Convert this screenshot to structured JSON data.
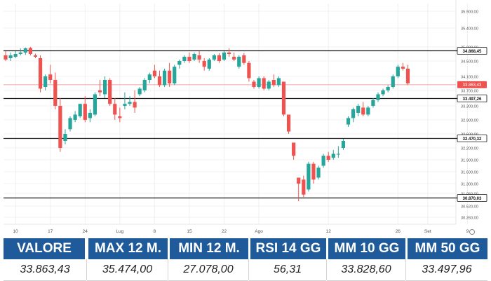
{
  "chart_data": {
    "type": "candlestick",
    "y_ticks": [
      "35.900,00",
      "35.400,00",
      "35.000,00",
      "34.500,00",
      "34.100,00",
      "33.700,00",
      "33.300,00",
      "32.900,00",
      "32.600,00",
      "32.200,00",
      "31.900,00",
      "31.600,00",
      "31.300,00",
      "31.050,00",
      "30.520,00",
      "30.260,00"
    ],
    "x_ticks": [
      "10",
      "17",
      "24",
      "Lug",
      "8",
      "15",
      "22",
      "Ago",
      "12",
      "26",
      "Set",
      "9"
    ],
    "x_tick_days": [
      2,
      9,
      16,
      23,
      30,
      37,
      44,
      51,
      65,
      79,
      85,
      93
    ],
    "y_label_values": [
      35900,
      35400,
      35000,
      34500,
      34100,
      33700,
      33300,
      32900,
      32600,
      32200,
      31900,
      31600,
      31300,
      31050,
      30520,
      30260
    ],
    "levels": [
      {
        "label": "34.868,45",
        "value": 34868.45
      },
      {
        "label": "33.497,26",
        "value": 33497.26
      },
      {
        "label": "32.470,32",
        "value": 32470.32
      },
      {
        "label": "30.870,03",
        "value": 30870.03
      }
    ],
    "current": {
      "label": "33.863,43",
      "value": 33863.43
    },
    "candles": [
      {
        "d": 0,
        "o": 34700,
        "h": 34850,
        "l": 34500,
        "c": 34550
      },
      {
        "d": 1,
        "o": 34600,
        "h": 34800,
        "l": 34500,
        "c": 34700
      },
      {
        "d": 2,
        "o": 34650,
        "h": 34850,
        "l": 34600,
        "c": 34750
      },
      {
        "d": 3,
        "o": 34750,
        "h": 34950,
        "l": 34700,
        "c": 34800
      },
      {
        "d": 4,
        "o": 34800,
        "h": 34980,
        "l": 34720,
        "c": 34950
      },
      {
        "d": 5,
        "o": 34960,
        "h": 35000,
        "l": 34700,
        "c": 34750
      },
      {
        "d": 6,
        "o": 34700,
        "h": 34760,
        "l": 34600,
        "c": 34650
      },
      {
        "d": 7,
        "o": 34600,
        "h": 34700,
        "l": 33650,
        "c": 33750
      },
      {
        "d": 8,
        "o": 33800,
        "h": 34150,
        "l": 33700,
        "c": 34100
      },
      {
        "d": 9,
        "o": 34150,
        "h": 34400,
        "l": 33900,
        "c": 34000
      },
      {
        "d": 10,
        "o": 34000,
        "h": 34200,
        "l": 33200,
        "c": 33300
      },
      {
        "d": 11,
        "o": 33300,
        "h": 33500,
        "l": 32100,
        "c": 32200
      },
      {
        "d": 12,
        "o": 32400,
        "h": 32700,
        "l": 32300,
        "c": 32600
      },
      {
        "d": 13,
        "o": 32700,
        "h": 33000,
        "l": 32650,
        "c": 32950
      },
      {
        "d": 14,
        "o": 32900,
        "h": 33150,
        "l": 32850,
        "c": 33050
      },
      {
        "d": 15,
        "o": 33000,
        "h": 33350,
        "l": 32950,
        "c": 33350
      },
      {
        "d": 16,
        "o": 33350,
        "h": 33550,
        "l": 32850,
        "c": 32900
      },
      {
        "d": 17,
        "o": 32950,
        "h": 33200,
        "l": 32850,
        "c": 33100
      },
      {
        "d": 18,
        "o": 33050,
        "h": 33650,
        "l": 33000,
        "c": 33600
      },
      {
        "d": 19,
        "o": 33700,
        "h": 34000,
        "l": 33550,
        "c": 33650
      },
      {
        "d": 20,
        "o": 33600,
        "h": 34100,
        "l": 33500,
        "c": 34000
      },
      {
        "d": 21,
        "o": 34000,
        "h": 34050,
        "l": 33300,
        "c": 33350
      },
      {
        "d": 22,
        "o": 33350,
        "h": 33500,
        "l": 32900,
        "c": 33050
      },
      {
        "d": 23,
        "o": 33000,
        "h": 33250,
        "l": 32850,
        "c": 32950
      },
      {
        "d": 24,
        "o": 33300,
        "h": 33650,
        "l": 33200,
        "c": 33350
      },
      {
        "d": 25,
        "o": 33350,
        "h": 33550,
        "l": 33300,
        "c": 33400
      },
      {
        "d": 26,
        "o": 33400,
        "h": 33700,
        "l": 33100,
        "c": 33250
      },
      {
        "d": 27,
        "o": 33600,
        "h": 33800,
        "l": 33550,
        "c": 33750
      },
      {
        "d": 28,
        "o": 33700,
        "h": 34050,
        "l": 33650,
        "c": 34000
      },
      {
        "d": 29,
        "o": 34000,
        "h": 34200,
        "l": 33900,
        "c": 34150
      },
      {
        "d": 30,
        "o": 34250,
        "h": 34400,
        "l": 34050,
        "c": 34100
      },
      {
        "d": 31,
        "o": 34100,
        "h": 34250,
        "l": 33800,
        "c": 33850
      },
      {
        "d": 32,
        "o": 33850,
        "h": 34300,
        "l": 33800,
        "c": 34250
      },
      {
        "d": 33,
        "o": 34250,
        "h": 34450,
        "l": 33800,
        "c": 33900
      },
      {
        "d": 34,
        "o": 33900,
        "h": 34400,
        "l": 33850,
        "c": 34350
      },
      {
        "d": 35,
        "o": 34400,
        "h": 34550,
        "l": 34300,
        "c": 34500
      },
      {
        "d": 36,
        "o": 34500,
        "h": 34700,
        "l": 34450,
        "c": 34650
      },
      {
        "d": 37,
        "o": 34650,
        "h": 34800,
        "l": 34450,
        "c": 34500
      },
      {
        "d": 38,
        "o": 34550,
        "h": 34800,
        "l": 34500,
        "c": 34750
      },
      {
        "d": 39,
        "o": 34700,
        "h": 34850,
        "l": 34450,
        "c": 34550
      },
      {
        "d": 40,
        "o": 34500,
        "h": 34600,
        "l": 34250,
        "c": 34350
      },
      {
        "d": 41,
        "o": 34300,
        "h": 34600,
        "l": 34250,
        "c": 34550
      },
      {
        "d": 42,
        "o": 34550,
        "h": 34750,
        "l": 34500,
        "c": 34700
      },
      {
        "d": 43,
        "o": 34700,
        "h": 34780,
        "l": 34450,
        "c": 34500
      },
      {
        "d": 44,
        "o": 34550,
        "h": 34850,
        "l": 34500,
        "c": 34800
      },
      {
        "d": 45,
        "o": 34800,
        "h": 34950,
        "l": 34650,
        "c": 34750
      },
      {
        "d": 46,
        "o": 34650,
        "h": 34800,
        "l": 34500,
        "c": 34550
      },
      {
        "d": 47,
        "o": 34350,
        "h": 34700,
        "l": 34300,
        "c": 34650
      },
      {
        "d": 48,
        "o": 34700,
        "h": 34780,
        "l": 34400,
        "c": 34450
      },
      {
        "d": 49,
        "o": 34450,
        "h": 34500,
        "l": 33950,
        "c": 34050
      },
      {
        "d": 50,
        "o": 33950,
        "h": 34000,
        "l": 33750,
        "c": 33800
      },
      {
        "d": 51,
        "o": 33800,
        "h": 34100,
        "l": 33750,
        "c": 34050
      },
      {
        "d": 52,
        "o": 34050,
        "h": 34100,
        "l": 33700,
        "c": 33750
      },
      {
        "d": 53,
        "o": 33750,
        "h": 34000,
        "l": 33700,
        "c": 33950
      },
      {
        "d": 54,
        "o": 34000,
        "h": 34150,
        "l": 33800,
        "c": 33850
      },
      {
        "d": 55,
        "o": 33850,
        "h": 34100,
        "l": 33800,
        "c": 34050
      },
      {
        "d": 56,
        "o": 33950,
        "h": 33950,
        "l": 33000,
        "c": 33050
      },
      {
        "d": 57,
        "o": 33050,
        "h": 33050,
        "l": 32600,
        "c": 32650
      },
      {
        "d": 58,
        "o": 32350,
        "h": 32350,
        "l": 31900,
        "c": 32000
      },
      {
        "d": 59,
        "o": 31450,
        "h": 31450,
        "l": 30720,
        "c": 31300
      },
      {
        "d": 60,
        "o": 31400,
        "h": 31500,
        "l": 30900,
        "c": 31000
      },
      {
        "d": 61,
        "o": 31150,
        "h": 31850,
        "l": 31100,
        "c": 31800
      },
      {
        "d": 62,
        "o": 31800,
        "h": 31850,
        "l": 31300,
        "c": 31400
      },
      {
        "d": 63,
        "o": 31450,
        "h": 31750,
        "l": 31400,
        "c": 31700
      },
      {
        "d": 64,
        "o": 31750,
        "h": 32050,
        "l": 31700,
        "c": 32000
      },
      {
        "d": 65,
        "o": 32000,
        "h": 32100,
        "l": 31850,
        "c": 31900
      },
      {
        "d": 66,
        "o": 31950,
        "h": 32150,
        "l": 31900,
        "c": 32050
      },
      {
        "d": 67,
        "o": 32050,
        "h": 32250,
        "l": 31950,
        "c": 32050
      },
      {
        "d": 68,
        "o": 32200,
        "h": 32450,
        "l": 32150,
        "c": 32400
      },
      {
        "d": 69,
        "o": 32800,
        "h": 33000,
        "l": 32750,
        "c": 32950
      },
      {
        "d": 70,
        "o": 32950,
        "h": 33250,
        "l": 32850,
        "c": 33200
      },
      {
        "d": 71,
        "o": 33100,
        "h": 33350,
        "l": 33000,
        "c": 33300
      },
      {
        "d": 72,
        "o": 33250,
        "h": 33400,
        "l": 33000,
        "c": 33050
      },
      {
        "d": 73,
        "o": 33050,
        "h": 33300,
        "l": 33000,
        "c": 33250
      },
      {
        "d": 74,
        "o": 33300,
        "h": 33500,
        "l": 33250,
        "c": 33450
      },
      {
        "d": 75,
        "o": 33450,
        "h": 33650,
        "l": 33400,
        "c": 33600
      },
      {
        "d": 76,
        "o": 33600,
        "h": 33750,
        "l": 33550,
        "c": 33700
      },
      {
        "d": 77,
        "o": 33700,
        "h": 33850,
        "l": 33650,
        "c": 33800
      },
      {
        "d": 78,
        "o": 33800,
        "h": 34150,
        "l": 33750,
        "c": 34100
      },
      {
        "d": 79,
        "o": 34100,
        "h": 34400,
        "l": 34050,
        "c": 34350
      },
      {
        "d": 80,
        "o": 34350,
        "h": 34450,
        "l": 34250,
        "c": 34300
      },
      {
        "d": 81,
        "o": 34300,
        "h": 34400,
        "l": 33850,
        "c": 33900
      }
    ]
  },
  "stats": {
    "headers": [
      "VALORE",
      "MAX 12 M.",
      "MIN 12 M.",
      "RSI 14 GG",
      "MM 10 GG",
      "MM 50 GG"
    ],
    "values": [
      "33.863,43",
      "35.474,00",
      "27.078,00",
      "56,31",
      "33.828,60",
      "33.497,96"
    ]
  },
  "colors": {
    "up": "#26a69a",
    "down": "#ef5350",
    "header_bg": "#1f5a9a",
    "level_line": "#111111",
    "current_line": "#f0a0a0"
  }
}
